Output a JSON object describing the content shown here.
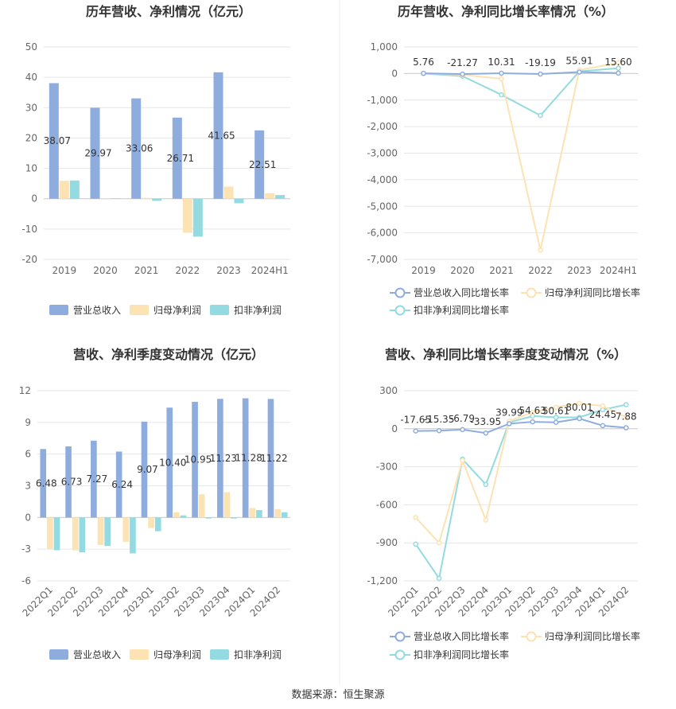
{
  "colors": {
    "revenue": "#8eadde",
    "net_profit": "#fde2b3",
    "deducted_profit": "#93dbe0",
    "gridline": "#e6e6e6",
    "axis_text": "#666666",
    "title_text": "#333333",
    "divider": "#eeeeee"
  },
  "legend_bar": [
    "营业总收入",
    "归母净利润",
    "扣非净利润"
  ],
  "legend_line": [
    "营业总收入同比增长率",
    "归母净利润同比增长率",
    "扣非净利润同比增长率"
  ],
  "source_text": "数据来源：恒生聚源",
  "chart_data": [
    {
      "id": "annual-values",
      "type": "bar",
      "title": "历年营收、净利情况（亿元）",
      "categories": [
        "2019",
        "2020",
        "2021",
        "2022",
        "2023",
        "2024H1"
      ],
      "ylim": [
        -20,
        50
      ],
      "yticks": [
        -20,
        -10,
        0,
        10,
        20,
        30,
        40,
        50
      ],
      "tick_labels": [
        "-20",
        "-10",
        "0",
        "10",
        "20",
        "30",
        "40",
        "50"
      ],
      "series": [
        {
          "name": "营业总收入",
          "values": [
            38.07,
            29.97,
            33.06,
            26.71,
            41.65,
            22.51
          ]
        },
        {
          "name": "归母净利润",
          "values": [
            5.9,
            0.2,
            0.3,
            -11.2,
            4.0,
            1.8
          ]
        },
        {
          "name": "扣非净利润",
          "values": [
            6.0,
            0.1,
            -0.7,
            -12.5,
            -1.5,
            1.2
          ]
        }
      ],
      "data_labels": [
        "38.07",
        "29.97",
        "33.06",
        "26.71",
        "41.65",
        "22.51"
      ],
      "grid": true,
      "legend_position": "bottom"
    },
    {
      "id": "annual-growth",
      "type": "line",
      "title": "历年营收、净利同比增长率情况（%）",
      "categories": [
        "2019",
        "2020",
        "2021",
        "2022",
        "2023",
        "2024H1"
      ],
      "ylim": [
        -7000,
        1000
      ],
      "yticks": [
        -7000,
        -6000,
        -5000,
        -4000,
        -3000,
        -2000,
        -1000,
        0,
        1000
      ],
      "tick_labels": [
        "-7,000",
        "-6,000",
        "-5,000",
        "-4,000",
        "-3,000",
        "-2,000",
        "-1,000",
        "0",
        "1,000"
      ],
      "series": [
        {
          "name": "营业总收入同比增长率",
          "values": [
            5.76,
            -21.27,
            10.31,
            -19.19,
            55.91,
            15.6
          ]
        },
        {
          "name": "归母净利润同比增长率",
          "values": [
            0,
            -50,
            -200,
            -6650,
            130,
            400
          ]
        },
        {
          "name": "扣非净利润同比增长率",
          "values": [
            0,
            -100,
            -800,
            -1580,
            80,
            200
          ]
        }
      ],
      "data_labels": [
        "5.76",
        "-21.27",
        "10.31",
        "-19.19",
        "55.91",
        "15.60"
      ],
      "grid": true,
      "legend_position": "bottom"
    },
    {
      "id": "quarterly-values",
      "type": "bar",
      "title": "营收、净利季度变动情况（亿元）",
      "categories": [
        "2022Q1",
        "2022Q2",
        "2022Q3",
        "2022Q4",
        "2023Q1",
        "2023Q2",
        "2023Q3",
        "2023Q4",
        "2024Q1",
        "2024Q2"
      ],
      "ylim": [
        -6,
        12
      ],
      "yticks": [
        -6,
        -3,
        0,
        3,
        6,
        9,
        12
      ],
      "tick_labels": [
        "-6",
        "-3",
        "0",
        "3",
        "6",
        "9",
        "12"
      ],
      "series": [
        {
          "name": "营业总收入",
          "values": [
            6.48,
            6.73,
            7.27,
            6.24,
            9.07,
            10.4,
            10.95,
            11.23,
            11.28,
            11.22
          ]
        },
        {
          "name": "归母净利润",
          "values": [
            -3.0,
            -3.1,
            -2.6,
            -2.3,
            -1.0,
            0.5,
            2.2,
            2.4,
            0.9,
            0.8
          ]
        },
        {
          "name": "扣非净利润",
          "values": [
            -3.1,
            -3.3,
            -2.7,
            -3.4,
            -1.3,
            0.2,
            -0.1,
            -0.1,
            0.7,
            0.5
          ]
        }
      ],
      "data_labels": [
        "6.48",
        "6.73",
        "7.27",
        "6.24",
        "9.07",
        "10.40",
        "10.95",
        "11.23",
        "11.28",
        "11.22"
      ],
      "grid": true,
      "legend_position": "bottom"
    },
    {
      "id": "quarterly-growth",
      "type": "line",
      "title": "营收、净利同比增长率季度变动情况（%）",
      "categories": [
        "2022Q1",
        "2022Q2",
        "2022Q3",
        "2022Q4",
        "2023Q1",
        "2023Q2",
        "2023Q3",
        "2023Q4",
        "2024Q1",
        "2024Q2"
      ],
      "ylim": [
        -1200,
        300
      ],
      "yticks": [
        -1200,
        -900,
        -600,
        -300,
        0,
        300
      ],
      "tick_labels": [
        "-1,200",
        "-900",
        "-600",
        "-300",
        "0",
        "300"
      ],
      "series": [
        {
          "name": "营业总收入同比增长率",
          "values": [
            -17.65,
            -15.35,
            -6.79,
            -33.95,
            39.99,
            54.63,
            50.61,
            80.01,
            24.45,
            7.88
          ]
        },
        {
          "name": "归母净利润同比增长率",
          "values": [
            -700,
            -900,
            -250,
            -720,
            60,
            130,
            170,
            200,
            180,
            90
          ]
        },
        {
          "name": "扣非净利润同比增长率",
          "values": [
            -910,
            -1180,
            -240,
            -440,
            50,
            100,
            90,
            90,
            150,
            190
          ]
        }
      ],
      "data_labels": [
        "-17.65",
        "-15.35",
        "-6.79",
        "-33.95",
        "39.99",
        "54.63",
        "50.61",
        "80.01",
        "24.45",
        "7.88"
      ],
      "grid": true,
      "legend_position": "bottom"
    }
  ]
}
